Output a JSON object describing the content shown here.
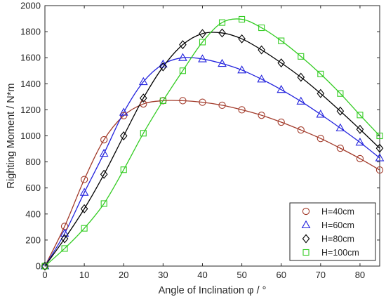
{
  "chart_data": {
    "type": "line",
    "title": "",
    "xlabel": "Angle of Inclination φ / °",
    "ylabel": "Righting Moment / N*m",
    "xlim": [
      0,
      85
    ],
    "ylim": [
      0,
      2000
    ],
    "xticks": [
      0,
      10,
      20,
      30,
      40,
      50,
      60,
      70,
      80
    ],
    "yticks": [
      0,
      200,
      400,
      600,
      800,
      1000,
      1200,
      1400,
      1600,
      1800,
      2000
    ],
    "grid": false,
    "legend_position": "bottom-right",
    "x": [
      0,
      5,
      10,
      15,
      20,
      25,
      30,
      35,
      40,
      45,
      50,
      55,
      60,
      65,
      70,
      75,
      80,
      85
    ],
    "series": [
      {
        "name": "H=40cm",
        "color": "#a23a2a",
        "marker": "circle",
        "values": [
          0,
          305,
          665,
          970,
          1155,
          1245,
          1270,
          1270,
          1258,
          1235,
          1200,
          1158,
          1105,
          1045,
          980,
          905,
          825,
          738
        ]
      },
      {
        "name": "H=60cm",
        "color": "#2222dd",
        "marker": "triangle",
        "values": [
          0,
          250,
          565,
          865,
          1180,
          1415,
          1550,
          1600,
          1590,
          1555,
          1505,
          1435,
          1355,
          1265,
          1165,
          1060,
          950,
          830
        ]
      },
      {
        "name": "H=80cm",
        "color": "#000000",
        "marker": "diamond",
        "values": [
          0,
          210,
          440,
          705,
          1000,
          1290,
          1530,
          1700,
          1785,
          1790,
          1745,
          1660,
          1560,
          1450,
          1325,
          1190,
          1050,
          905
        ]
      },
      {
        "name": "H=100cm",
        "color": "#33cc22",
        "marker": "square",
        "values": [
          0,
          135,
          290,
          480,
          740,
          1020,
          1270,
          1500,
          1720,
          1870,
          1895,
          1830,
          1730,
          1610,
          1475,
          1325,
          1160,
          1000
        ]
      }
    ]
  }
}
